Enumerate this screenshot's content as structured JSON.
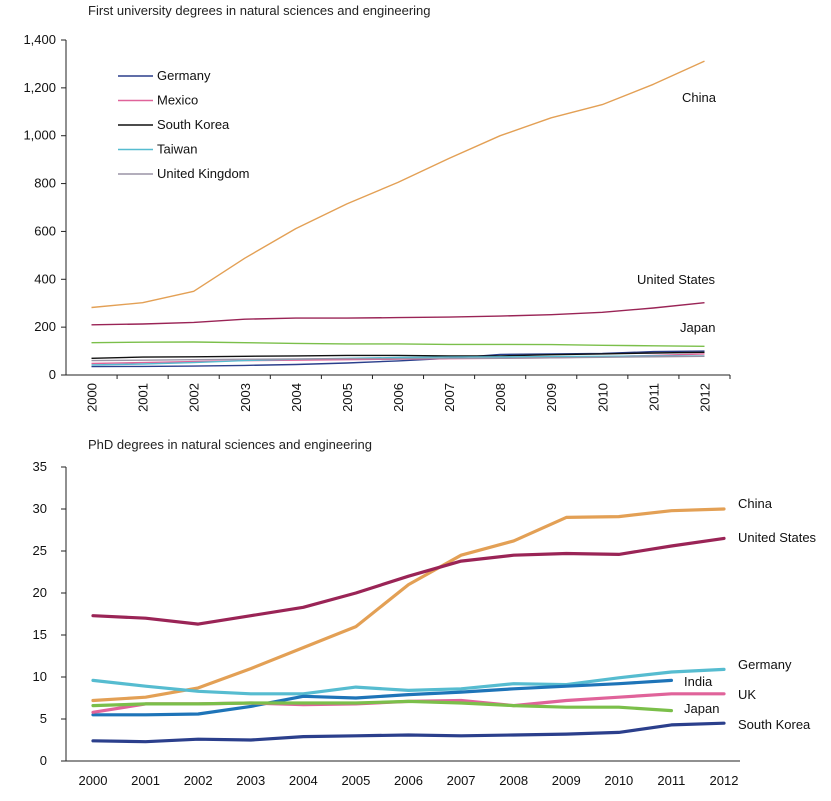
{
  "chart_data": [
    {
      "type": "line",
      "title": "First university degrees in natural sciences and engineering",
      "x": [
        "2000",
        "2001",
        "2002",
        "2003",
        "2004",
        "2005",
        "2006",
        "2007",
        "2008",
        "2009",
        "2010",
        "2011",
        "2012"
      ],
      "ylim": [
        0,
        1400
      ],
      "yticks": [
        "0",
        "200",
        "400",
        "600",
        "800",
        "1,000",
        "1,200",
        "1,400"
      ],
      "ytick_values": [
        0,
        200,
        400,
        600,
        800,
        1000,
        1200,
        1400
      ],
      "legend": [
        {
          "name": "Germany",
          "color": "#2b3f8c"
        },
        {
          "name": "Mexico",
          "color": "#e0639a"
        },
        {
          "name": "South Korea",
          "color": "#111111"
        },
        {
          "name": "Taiwan",
          "color": "#56bcd0"
        },
        {
          "name": "United Kingdom",
          "color": "#9a93a6"
        }
      ],
      "series": [
        {
          "name": "China",
          "color": "#e3a055",
          "label": "China",
          "values": [
            282,
            302,
            350,
            488,
            612,
            715,
            805,
            905,
            1000,
            1075,
            1130,
            1215,
            1312
          ]
        },
        {
          "name": "United States",
          "color": "#9a2456",
          "label": "United States",
          "values": [
            210,
            213,
            220,
            233,
            238,
            238,
            240,
            242,
            246,
            252,
            262,
            280,
            302
          ]
        },
        {
          "name": "Japan",
          "color": "#7bbf4a",
          "label": "Japan",
          "values": [
            135,
            137,
            138,
            135,
            132,
            130,
            130,
            128,
            128,
            127,
            124,
            122,
            120
          ]
        },
        {
          "name": "Germany",
          "color": "#2b3f8c",
          "values": [
            35,
            36,
            37,
            40,
            44,
            50,
            59,
            70,
            86,
            88,
            90,
            98,
            100
          ]
        },
        {
          "name": "Mexico",
          "color": "#e0639a",
          "values": [
            48,
            52,
            56,
            60,
            62,
            64,
            66,
            68,
            70,
            72,
            76,
            82,
            88
          ]
        },
        {
          "name": "South Korea",
          "color": "#111111",
          "values": [
            70,
            75,
            76,
            78,
            80,
            82,
            82,
            80,
            80,
            85,
            88,
            92,
            95
          ]
        },
        {
          "name": "Taiwan",
          "color": "#56bcd0",
          "values": [
            42,
            46,
            52,
            60,
            66,
            70,
            73,
            75,
            76,
            77,
            78,
            80,
            80
          ]
        },
        {
          "name": "United Kingdom",
          "color": "#9a93a6",
          "values": [
            60,
            62,
            64,
            66,
            67,
            68,
            68,
            70,
            70,
            72,
            74,
            76,
            78
          ]
        }
      ]
    },
    {
      "type": "line",
      "title": "PhD degrees in natural sciences and engineering",
      "x": [
        "2000",
        "2001",
        "2002",
        "2003",
        "2004",
        "2005",
        "2006",
        "2007",
        "2008",
        "2009",
        "2010",
        "2011",
        "2012"
      ],
      "ylim": [
        0,
        35
      ],
      "yticks": [
        "0",
        "5",
        "10",
        "15",
        "20",
        "25",
        "30",
        "35"
      ],
      "ytick_values": [
        0,
        5,
        10,
        15,
        20,
        25,
        30,
        35
      ],
      "series": [
        {
          "name": "China",
          "color": "#e3a055",
          "label": "China",
          "values": [
            7.2,
            7.6,
            8.7,
            11.0,
            13.5,
            16.0,
            21.0,
            24.5,
            26.2,
            29.0,
            29.1,
            29.8,
            30.0
          ]
        },
        {
          "name": "United States",
          "color": "#9a2456",
          "label": "United States",
          "values": [
            17.3,
            17.0,
            16.3,
            17.3,
            18.3,
            20.0,
            22.0,
            23.8,
            24.5,
            24.7,
            24.6,
            25.6,
            26.5
          ]
        },
        {
          "name": "Germany",
          "color": "#56bcd0",
          "label": "Germany",
          "values": [
            9.6,
            8.9,
            8.3,
            8.0,
            8.0,
            8.8,
            8.4,
            8.6,
            9.2,
            9.1,
            9.9,
            10.6,
            10.9
          ]
        },
        {
          "name": "India",
          "color": "#1e74b8",
          "label": "India",
          "values": [
            5.5,
            5.5,
            5.6,
            6.5,
            7.7,
            7.5,
            7.9,
            8.2,
            8.6,
            8.9,
            9.2,
            9.6,
            null
          ]
        },
        {
          "name": "UK",
          "color": "#e0639a",
          "label": "UK",
          "values": [
            5.8,
            6.8,
            6.8,
            6.9,
            6.7,
            6.8,
            7.1,
            7.2,
            6.6,
            7.2,
            7.6,
            8.0,
            8.0
          ]
        },
        {
          "name": "Japan",
          "color": "#7bbf4a",
          "label": "Japan",
          "values": [
            6.6,
            6.8,
            6.8,
            6.9,
            6.9,
            6.9,
            7.1,
            6.9,
            6.6,
            6.4,
            6.4,
            6.0,
            null
          ]
        },
        {
          "name": "South Korea",
          "color": "#2b3f8c",
          "label": "South Korea",
          "values": [
            2.4,
            2.3,
            2.6,
            2.5,
            2.9,
            3.0,
            3.1,
            3.0,
            3.1,
            3.2,
            3.4,
            4.3,
            4.5
          ]
        }
      ]
    }
  ]
}
